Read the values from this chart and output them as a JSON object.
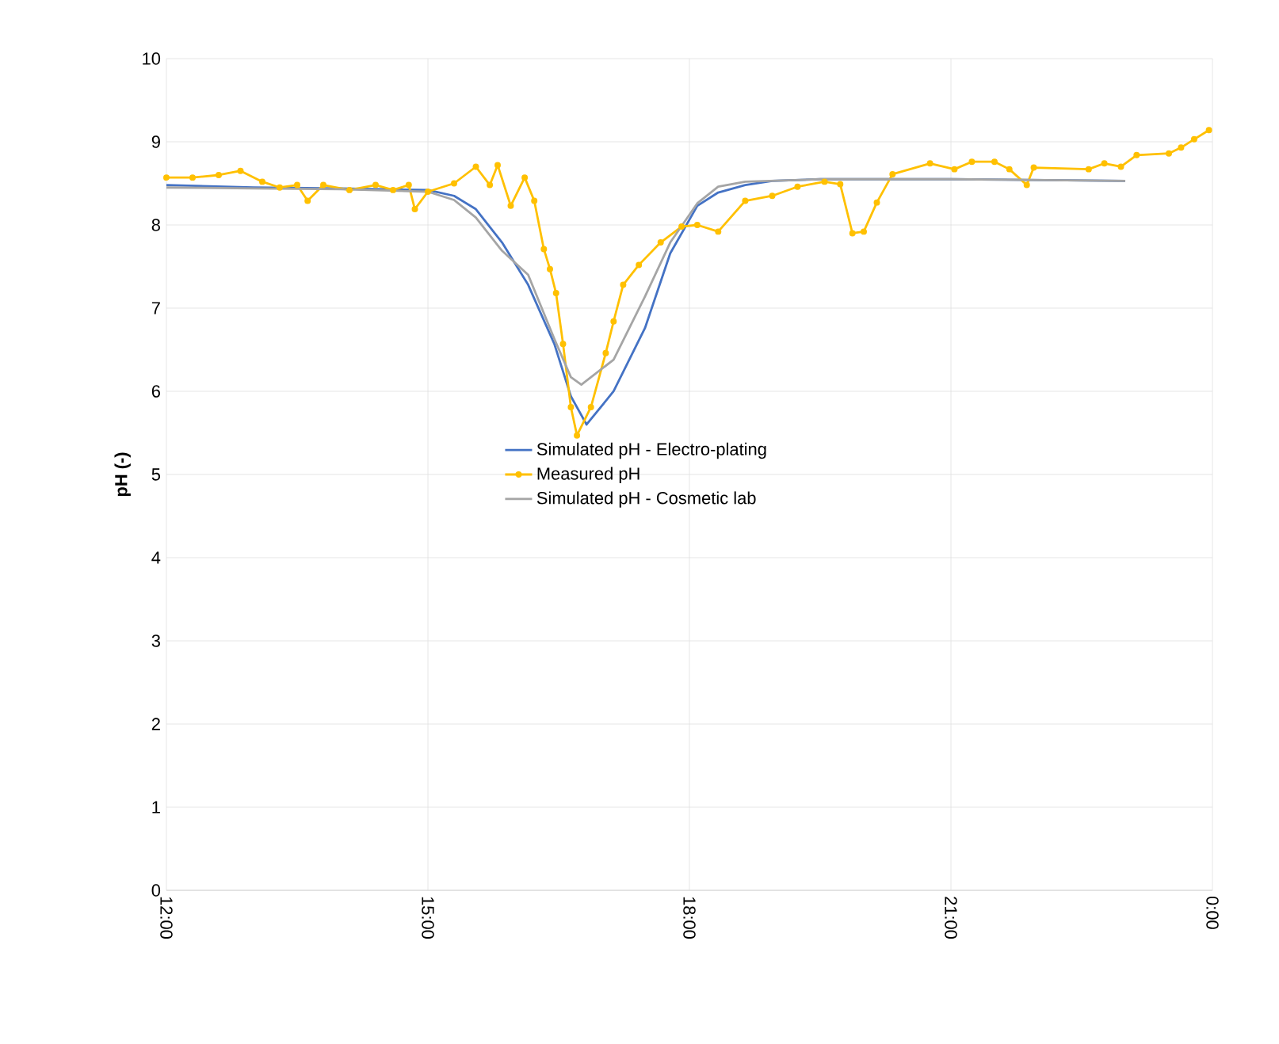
{
  "chart_data": {
    "type": "line",
    "ylabel": "pH (-)",
    "xlim": [
      12,
      24
    ],
    "ylim": [
      0,
      10
    ],
    "xticks": [
      {
        "value": 12,
        "label": "12:00"
      },
      {
        "value": 15,
        "label": "15:00"
      },
      {
        "value": 18,
        "label": "18:00"
      },
      {
        "value": 21,
        "label": "21:00"
      },
      {
        "value": 24,
        "label": "0:00"
      }
    ],
    "yticks": [
      0,
      1,
      2,
      3,
      4,
      5,
      6,
      7,
      8,
      9,
      10
    ],
    "grid": true,
    "legend": "center",
    "series": [
      {
        "name": "Simulated pH - Electro-plating",
        "color": "#4472c4",
        "marker": "none",
        "x": [
          12,
          13,
          14,
          15,
          15.3,
          15.55,
          15.85,
          16.15,
          16.45,
          16.64,
          16.82,
          17.13,
          17.49,
          17.78,
          18.09,
          18.33,
          18.64,
          18.95,
          19.5,
          21,
          23
        ],
        "values": [
          8.48,
          8.45,
          8.44,
          8.42,
          8.35,
          8.19,
          7.79,
          7.28,
          6.57,
          5.94,
          5.6,
          6.0,
          6.76,
          7.66,
          8.23,
          8.39,
          8.48,
          8.53,
          8.55,
          8.55,
          8.53
        ]
      },
      {
        "name": "Measured pH",
        "color": "#ffc000",
        "marker": "circle",
        "x": [
          12.0,
          12.3,
          12.6,
          12.85,
          13.1,
          13.3,
          13.5,
          13.62,
          13.8,
          14.1,
          14.4,
          14.6,
          14.78,
          14.85,
          15.0,
          15.3,
          15.55,
          15.71,
          15.8,
          15.95,
          16.11,
          16.22,
          16.33,
          16.4,
          16.47,
          16.55,
          16.64,
          16.71,
          16.87,
          17.04,
          17.13,
          17.24,
          17.42,
          17.67,
          17.91,
          18.09,
          18.33,
          18.64,
          18.95,
          19.24,
          19.55,
          19.73,
          19.87,
          20.0,
          20.15,
          20.33,
          20.76,
          21.04,
          21.24,
          21.5,
          21.67,
          21.87,
          21.95,
          22.58,
          22.76,
          22.95,
          23.13,
          23.5,
          23.64,
          23.79,
          23.96
        ],
        "values": [
          8.57,
          8.57,
          8.6,
          8.65,
          8.52,
          8.45,
          8.48,
          8.29,
          8.48,
          8.42,
          8.48,
          8.42,
          8.48,
          8.19,
          8.4,
          8.5,
          8.7,
          8.48,
          8.72,
          8.23,
          8.57,
          8.29,
          7.71,
          7.47,
          7.18,
          6.57,
          5.81,
          5.47,
          5.81,
          6.46,
          6.84,
          7.28,
          7.52,
          7.79,
          7.98,
          8.0,
          7.92,
          8.29,
          8.35,
          8.46,
          8.52,
          8.49,
          7.9,
          7.92,
          8.27,
          8.61,
          8.74,
          8.67,
          8.76,
          8.76,
          8.67,
          8.48,
          8.69,
          8.67,
          8.74,
          8.7,
          8.84,
          8.86,
          8.93,
          9.03,
          9.14
        ]
      },
      {
        "name": "Simulated pH - Cosmetic lab",
        "color": "#a5a5a5",
        "marker": "none",
        "x": [
          12,
          13,
          14,
          15,
          15.3,
          15.55,
          15.85,
          16.15,
          16.45,
          16.64,
          16.76,
          17.13,
          17.49,
          17.78,
          18.09,
          18.33,
          18.64,
          19.5,
          21,
          23
        ],
        "values": [
          8.45,
          8.44,
          8.43,
          8.4,
          8.3,
          8.09,
          7.69,
          7.4,
          6.63,
          6.17,
          6.08,
          6.38,
          7.14,
          7.79,
          8.26,
          8.46,
          8.52,
          8.55,
          8.55,
          8.53
        ]
      }
    ]
  }
}
